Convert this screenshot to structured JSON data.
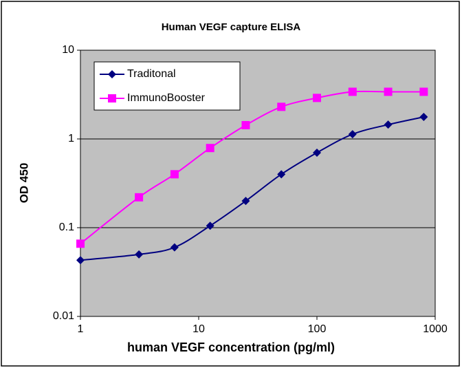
{
  "chart_data": {
    "type": "line",
    "title": "Human VEGF capture ELISA",
    "x_label": "human VEGF concentration (pg/ml)",
    "y_label": "OD 450",
    "x": [
      1,
      3.125,
      6.25,
      12.5,
      25,
      50,
      100,
      200,
      400,
      800
    ],
    "series": [
      {
        "name": "Traditonal",
        "color": "#000080",
        "marker": "diamond",
        "values": [
          0.043,
          0.05,
          0.06,
          0.105,
          0.2,
          0.4,
          0.7,
          1.13,
          1.45,
          1.77
        ]
      },
      {
        "name": "ImmunoBooster",
        "color": "#ff00ff",
        "marker": "square",
        "values": [
          0.066,
          0.22,
          0.4,
          0.79,
          1.43,
          2.3,
          2.9,
          3.4,
          3.4,
          3.4
        ]
      }
    ],
    "xlim": [
      1,
      1000
    ],
    "xticks": [
      1,
      10,
      100,
      1000
    ],
    "xscale": "log",
    "ylim": [
      0.01,
      10
    ],
    "yticks": [
      0.01,
      0.1,
      1,
      10
    ],
    "yscale": "log",
    "grid": true,
    "legend": "upper left"
  }
}
